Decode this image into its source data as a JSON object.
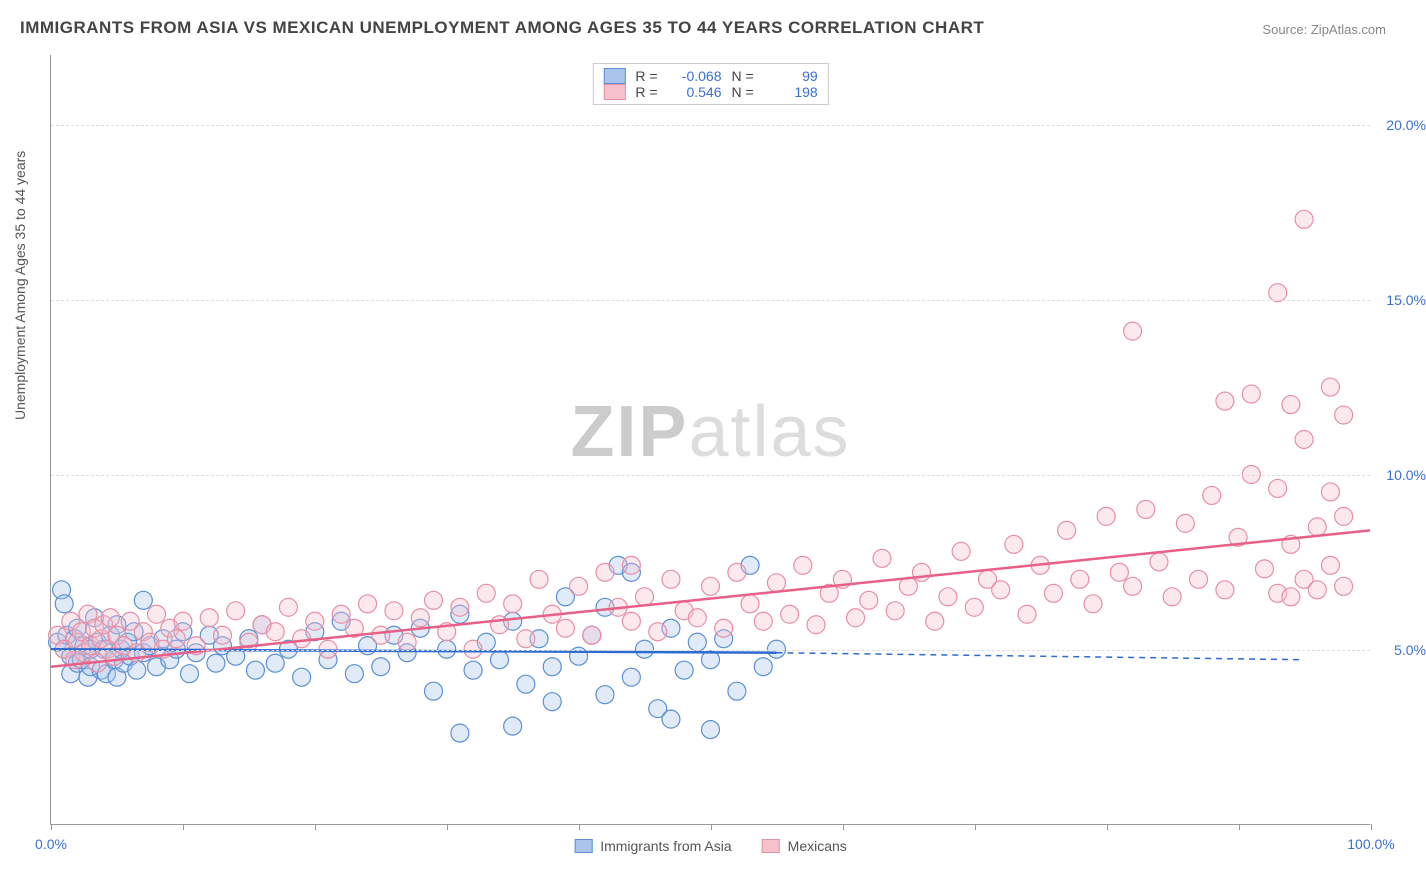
{
  "title": "IMMIGRANTS FROM ASIA VS MEXICAN UNEMPLOYMENT AMONG AGES 35 TO 44 YEARS CORRELATION CHART",
  "source_label": "Source:",
  "source_link": "ZipAtlas.com",
  "ylabel": "Unemployment Among Ages 35 to 44 years",
  "watermark_a": "ZIP",
  "watermark_b": "atlas",
  "chart": {
    "type": "scatter",
    "xlim": [
      0,
      100
    ],
    "ylim": [
      0,
      22
    ],
    "xtick_labels": [
      {
        "pos": 0,
        "label": "0.0%"
      },
      {
        "pos": 100,
        "label": "100.0%"
      }
    ],
    "xtick_marks": [
      0,
      10,
      20,
      30,
      40,
      50,
      60,
      70,
      80,
      90,
      100
    ],
    "ytick_labels": [
      {
        "pos": 5,
        "label": "5.0%"
      },
      {
        "pos": 10,
        "label": "10.0%"
      },
      {
        "pos": 15,
        "label": "15.0%"
      },
      {
        "pos": 20,
        "label": "20.0%"
      }
    ],
    "grid_y": [
      5,
      10,
      15,
      20
    ],
    "grid_color": "#dddddd",
    "background_color": "#ffffff",
    "marker_radius": 9,
    "marker_opacity": 0.35,
    "label_fontsize": 14,
    "title_fontsize": 17,
    "series": [
      {
        "name": "Immigrants from Asia",
        "fill": "#a9c5ec",
        "stroke": "#5b8fd6",
        "line_color": "#2e6bd0",
        "R": "-0.068",
        "N": "99",
        "trend": {
          "x1": 0,
          "y1": 5.0,
          "x2": 55,
          "y2": 4.9,
          "dash_from_x": 55,
          "dash_to_x": 95,
          "dash_y2": 4.7
        },
        "points": [
          [
            0.5,
            5.2
          ],
          [
            0.8,
            6.7
          ],
          [
            1,
            5.0
          ],
          [
            1,
            6.3
          ],
          [
            1.2,
            5.4
          ],
          [
            1.5,
            4.8
          ],
          [
            1.5,
            4.3
          ],
          [
            1.8,
            5.3
          ],
          [
            2,
            5.6
          ],
          [
            2,
            4.6
          ],
          [
            2.3,
            4.7
          ],
          [
            2.5,
            5.1
          ],
          [
            2.8,
            4.2
          ],
          [
            3,
            5.0
          ],
          [
            3,
            4.5
          ],
          [
            3.3,
            5.9
          ],
          [
            3.5,
            5.2
          ],
          [
            3.8,
            4.4
          ],
          [
            4,
            5.0
          ],
          [
            4.2,
            4.3
          ],
          [
            4.5,
            5.4
          ],
          [
            4.8,
            4.7
          ],
          [
            5,
            4.2
          ],
          [
            5,
            5.7
          ],
          [
            5.3,
            5.0
          ],
          [
            5.5,
            4.6
          ],
          [
            5.8,
            5.2
          ],
          [
            6,
            4.8
          ],
          [
            6.3,
            5.5
          ],
          [
            6.5,
            4.4
          ],
          [
            7,
            6.4
          ],
          [
            7,
            4.9
          ],
          [
            7.5,
            5.1
          ],
          [
            8,
            4.5
          ],
          [
            8.5,
            5.3
          ],
          [
            9,
            4.7
          ],
          [
            9.5,
            5.0
          ],
          [
            10,
            5.5
          ],
          [
            10.5,
            4.3
          ],
          [
            11,
            4.9
          ],
          [
            12,
            5.4
          ],
          [
            12.5,
            4.6
          ],
          [
            13,
            5.1
          ],
          [
            14,
            4.8
          ],
          [
            15,
            5.3
          ],
          [
            15.5,
            4.4
          ],
          [
            16,
            5.7
          ],
          [
            17,
            4.6
          ],
          [
            18,
            5.0
          ],
          [
            19,
            4.2
          ],
          [
            20,
            5.5
          ],
          [
            21,
            4.7
          ],
          [
            22,
            5.8
          ],
          [
            23,
            4.3
          ],
          [
            24,
            5.1
          ],
          [
            25,
            4.5
          ],
          [
            26,
            5.4
          ],
          [
            27,
            4.9
          ],
          [
            28,
            5.6
          ],
          [
            29,
            3.8
          ],
          [
            30,
            5.0
          ],
          [
            31,
            6.0
          ],
          [
            31,
            2.6
          ],
          [
            32,
            4.4
          ],
          [
            33,
            5.2
          ],
          [
            34,
            4.7
          ],
          [
            35,
            5.8
          ],
          [
            35,
            2.8
          ],
          [
            36,
            4.0
          ],
          [
            37,
            5.3
          ],
          [
            38,
            4.5
          ],
          [
            38,
            3.5
          ],
          [
            39,
            6.5
          ],
          [
            40,
            4.8
          ],
          [
            41,
            5.4
          ],
          [
            42,
            3.7
          ],
          [
            42,
            6.2
          ],
          [
            43,
            7.4
          ],
          [
            44,
            4.2
          ],
          [
            44,
            7.2
          ],
          [
            45,
            5.0
          ],
          [
            46,
            3.3
          ],
          [
            47,
            5.6
          ],
          [
            47,
            3.0
          ],
          [
            48,
            4.4
          ],
          [
            49,
            5.2
          ],
          [
            50,
            2.7
          ],
          [
            50,
            4.7
          ],
          [
            51,
            5.3
          ],
          [
            52,
            3.8
          ],
          [
            53,
            7.4
          ],
          [
            54,
            4.5
          ],
          [
            55,
            5.0
          ]
        ]
      },
      {
        "name": "Mexicans",
        "fill": "#f4c1cd",
        "stroke": "#e88fa5",
        "line_color": "#e85f87",
        "R": "0.546",
        "N": "198",
        "trend": {
          "x1": 0,
          "y1": 4.5,
          "x2": 100,
          "y2": 8.4
        },
        "points": [
          [
            0.5,
            5.4
          ],
          [
            1,
            5.0
          ],
          [
            1.5,
            5.8
          ],
          [
            1.8,
            4.7
          ],
          [
            2,
            5.2
          ],
          [
            2.3,
            5.5
          ],
          [
            2.5,
            4.9
          ],
          [
            2.8,
            6.0
          ],
          [
            3,
            5.1
          ],
          [
            3.3,
            5.6
          ],
          [
            3.5,
            4.6
          ],
          [
            3.8,
            5.3
          ],
          [
            4,
            5.7
          ],
          [
            4.3,
            5.0
          ],
          [
            4.5,
            5.9
          ],
          [
            4.8,
            4.8
          ],
          [
            5,
            5.4
          ],
          [
            5.5,
            5.1
          ],
          [
            6,
            5.8
          ],
          [
            6.5,
            4.9
          ],
          [
            7,
            5.5
          ],
          [
            7.5,
            5.2
          ],
          [
            8,
            6.0
          ],
          [
            8.5,
            5.0
          ],
          [
            9,
            5.6
          ],
          [
            9.5,
            5.3
          ],
          [
            10,
            5.8
          ],
          [
            11,
            5.1
          ],
          [
            12,
            5.9
          ],
          [
            13,
            5.4
          ],
          [
            14,
            6.1
          ],
          [
            15,
            5.2
          ],
          [
            16,
            5.7
          ],
          [
            17,
            5.5
          ],
          [
            18,
            6.2
          ],
          [
            19,
            5.3
          ],
          [
            20,
            5.8
          ],
          [
            21,
            5.0
          ],
          [
            22,
            6.0
          ],
          [
            23,
            5.6
          ],
          [
            24,
            6.3
          ],
          [
            25,
            5.4
          ],
          [
            26,
            6.1
          ],
          [
            27,
            5.2
          ],
          [
            28,
            5.9
          ],
          [
            29,
            6.4
          ],
          [
            30,
            5.5
          ],
          [
            31,
            6.2
          ],
          [
            32,
            5.0
          ],
          [
            33,
            6.6
          ],
          [
            34,
            5.7
          ],
          [
            35,
            6.3
          ],
          [
            36,
            5.3
          ],
          [
            37,
            7.0
          ],
          [
            38,
            6.0
          ],
          [
            39,
            5.6
          ],
          [
            40,
            6.8
          ],
          [
            41,
            5.4
          ],
          [
            42,
            7.2
          ],
          [
            43,
            6.2
          ],
          [
            44,
            5.8
          ],
          [
            44,
            7.4
          ],
          [
            45,
            6.5
          ],
          [
            46,
            5.5
          ],
          [
            47,
            7.0
          ],
          [
            48,
            6.1
          ],
          [
            49,
            5.9
          ],
          [
            50,
            6.8
          ],
          [
            51,
            5.6
          ],
          [
            52,
            7.2
          ],
          [
            53,
            6.3
          ],
          [
            54,
            5.8
          ],
          [
            55,
            6.9
          ],
          [
            56,
            6.0
          ],
          [
            57,
            7.4
          ],
          [
            58,
            5.7
          ],
          [
            59,
            6.6
          ],
          [
            60,
            7.0
          ],
          [
            61,
            5.9
          ],
          [
            62,
            6.4
          ],
          [
            63,
            7.6
          ],
          [
            64,
            6.1
          ],
          [
            65,
            6.8
          ],
          [
            66,
            7.2
          ],
          [
            67,
            5.8
          ],
          [
            68,
            6.5
          ],
          [
            69,
            7.8
          ],
          [
            70,
            6.2
          ],
          [
            71,
            7.0
          ],
          [
            72,
            6.7
          ],
          [
            73,
            8.0
          ],
          [
            74,
            6.0
          ],
          [
            75,
            7.4
          ],
          [
            76,
            6.6
          ],
          [
            77,
            8.4
          ],
          [
            78,
            7.0
          ],
          [
            79,
            6.3
          ],
          [
            80,
            8.8
          ],
          [
            81,
            7.2
          ],
          [
            82,
            6.8
          ],
          [
            82,
            14.1
          ],
          [
            83,
            9.0
          ],
          [
            84,
            7.5
          ],
          [
            85,
            6.5
          ],
          [
            86,
            8.6
          ],
          [
            87,
            7.0
          ],
          [
            88,
            9.4
          ],
          [
            89,
            6.7
          ],
          [
            89,
            12.1
          ],
          [
            90,
            8.2
          ],
          [
            91,
            10.0
          ],
          [
            91,
            12.3
          ],
          [
            92,
            7.3
          ],
          [
            93,
            9.6
          ],
          [
            93,
            6.6
          ],
          [
            93,
            15.2
          ],
          [
            94,
            8.0
          ],
          [
            94,
            6.5
          ],
          [
            94,
            12.0
          ],
          [
            95,
            11.0
          ],
          [
            95,
            7.0
          ],
          [
            95,
            17.3
          ],
          [
            96,
            8.5
          ],
          [
            96,
            6.7
          ],
          [
            97,
            12.5
          ],
          [
            97,
            7.4
          ],
          [
            97,
            9.5
          ],
          [
            98,
            11.7
          ],
          [
            98,
            6.8
          ],
          [
            98,
            8.8
          ]
        ]
      }
    ]
  },
  "legend_top": {
    "r_label": "R =",
    "n_label": "N ="
  },
  "legend_bottom": [
    {
      "label": "Immigrants from Asia",
      "fill": "#a9c5ec",
      "stroke": "#5b8fd6"
    },
    {
      "label": "Mexicans",
      "fill": "#f4c1cd",
      "stroke": "#e88fa5"
    }
  ]
}
